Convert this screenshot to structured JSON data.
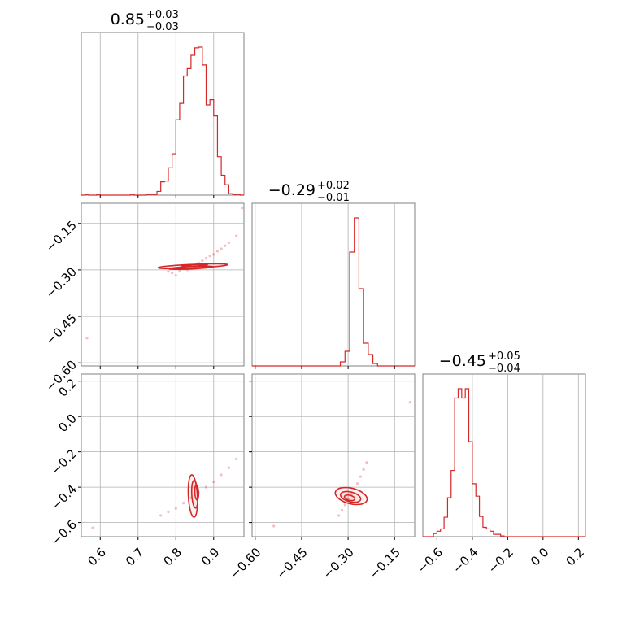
{
  "chart_data": {
    "type": "corner",
    "parameters": [
      {
        "title": {
          "median": "0.85",
          "plus": "+0.03",
          "minus": "−0.03"
        },
        "range": [
          0.55,
          0.98
        ],
        "ticks": [
          0.6,
          0.7,
          0.8,
          0.9
        ],
        "tick_labels": [
          "0.6",
          "0.7",
          "0.8",
          "0.9"
        ]
      },
      {
        "title": {
          "median": "−0.29",
          "plus": "+0.02",
          "minus": "−0.01"
        },
        "range": [
          -0.61,
          -0.085
        ],
        "ticks": [
          -0.6,
          -0.45,
          -0.3,
          -0.15
        ],
        "tick_labels": [
          "−0.60",
          "−0.45",
          "−0.30",
          "−0.15"
        ]
      },
      {
        "title": {
          "median": "−0.45",
          "plus": "+0.05",
          "minus": "−0.04"
        },
        "range": [
          -0.68,
          0.24
        ],
        "ticks": [
          -0.6,
          -0.4,
          -0.2,
          0.0,
          0.2
        ],
        "tick_labels": [
          "−0.6",
          "−0.4",
          "−0.2",
          "0.0",
          "0.2"
        ]
      }
    ],
    "histograms": [
      {
        "edges": [
          0.55,
          0.56,
          0.57,
          0.58,
          0.59,
          0.6,
          0.61,
          0.62,
          0.63,
          0.64,
          0.65,
          0.66,
          0.67,
          0.68,
          0.69,
          0.7,
          0.71,
          0.72,
          0.73,
          0.74,
          0.75,
          0.76,
          0.77,
          0.78,
          0.79,
          0.8,
          0.81,
          0.82,
          0.83,
          0.84,
          0.85,
          0.86,
          0.87,
          0.88,
          0.89,
          0.9,
          0.91,
          0.92,
          0.93,
          0.94,
          0.95,
          0.96,
          0.97,
          0.98
        ],
        "counts": [
          0,
          1,
          0,
          0,
          1,
          0,
          0,
          0,
          0,
          0,
          0,
          0,
          0,
          1,
          0,
          0,
          0,
          1,
          1,
          1,
          5,
          18,
          19,
          37,
          56,
          102,
          124,
          161,
          171,
          189,
          199,
          200,
          176,
          122,
          129,
          107,
          52,
          27,
          14,
          2,
          1,
          1,
          0
        ]
      },
      {
        "edges": [
          -0.61,
          -0.595,
          -0.58,
          -0.565,
          -0.55,
          -0.535,
          -0.52,
          -0.505,
          -0.49,
          -0.475,
          -0.46,
          -0.445,
          -0.43,
          -0.415,
          -0.4,
          -0.385,
          -0.37,
          -0.355,
          -0.34,
          -0.325,
          -0.31,
          -0.295,
          -0.28,
          -0.265,
          -0.25,
          -0.235,
          -0.22,
          -0.205,
          -0.19,
          -0.175,
          -0.16,
          -0.145,
          -0.13,
          -0.115,
          -0.1,
          -0.085
        ],
        "counts": [
          0,
          0,
          0,
          0,
          0,
          0,
          0,
          0,
          0,
          0,
          0,
          0,
          0,
          0,
          0,
          0,
          0,
          0,
          0,
          5,
          18,
          140,
          182,
          95,
          28,
          14,
          3,
          0,
          0,
          0,
          0,
          0,
          0,
          0,
          0
        ]
      },
      {
        "edges": [
          -0.68,
          -0.66,
          -0.64,
          -0.62,
          -0.6,
          -0.58,
          -0.56,
          -0.54,
          -0.52,
          -0.5,
          -0.48,
          -0.46,
          -0.44,
          -0.42,
          -0.4,
          -0.38,
          -0.36,
          -0.34,
          -0.32,
          -0.3,
          -0.28,
          -0.26,
          -0.24,
          -0.22,
          -0.2,
          -0.18,
          -0.16,
          -0.14,
          -0.12,
          -0.1,
          -0.08,
          -0.06,
          -0.04,
          -0.02,
          0.0,
          0.02,
          0.04,
          0.06,
          0.08,
          0.1,
          0.12,
          0.14,
          0.16,
          0.18,
          0.2,
          0.22,
          0.24
        ],
        "counts": [
          0,
          0,
          0,
          4,
          7,
          10,
          25,
          50,
          85,
          178,
          190,
          178,
          190,
          122,
          68,
          52,
          26,
          12,
          10,
          7,
          3,
          3,
          1,
          0,
          0,
          0,
          0,
          0,
          0,
          0,
          0,
          0,
          0,
          0,
          0,
          0,
          0,
          0,
          0,
          0,
          0,
          0,
          0,
          0,
          0,
          0
        ]
      }
    ],
    "pairs": [
      {
        "x_param": 0,
        "y_param": 1,
        "scatter": [
          [
            0.565,
            -0.52
          ],
          [
            0.78,
            -0.305
          ],
          [
            0.79,
            -0.31
          ],
          [
            0.8,
            -0.318
          ],
          [
            0.81,
            -0.302
          ],
          [
            0.82,
            -0.297
          ],
          [
            0.83,
            -0.3
          ],
          [
            0.84,
            -0.285
          ],
          [
            0.85,
            -0.29
          ],
          [
            0.86,
            -0.278
          ],
          [
            0.87,
            -0.27
          ],
          [
            0.88,
            -0.262
          ],
          [
            0.89,
            -0.255
          ],
          [
            0.9,
            -0.25
          ],
          [
            0.91,
            -0.24
          ],
          [
            0.92,
            -0.232
          ],
          [
            0.93,
            -0.222
          ],
          [
            0.94,
            -0.212
          ],
          [
            0.96,
            -0.19
          ],
          [
            0.975,
            -0.1
          ]
        ],
        "contours": [
          {
            "cx": 0.845,
            "cy": -0.288,
            "rx": 0.095,
            "ry": 0.006,
            "angle": 0.26
          },
          {
            "cx": 0.84,
            "cy": -0.293,
            "rx": 0.06,
            "ry": 0.004,
            "angle": 0.28
          },
          {
            "cx": 0.85,
            "cy": -0.285,
            "rx": 0.035,
            "ry": 0.0025,
            "angle": 0.3
          }
        ]
      },
      {
        "x_param": 0,
        "y_param": 2,
        "scatter": [
          [
            0.58,
            -0.63
          ],
          [
            0.76,
            -0.56
          ],
          [
            0.78,
            -0.54
          ],
          [
            0.8,
            -0.52
          ],
          [
            0.82,
            -0.49
          ],
          [
            0.84,
            -0.46
          ],
          [
            0.86,
            -0.43
          ],
          [
            0.88,
            -0.4
          ],
          [
            0.9,
            -0.37
          ],
          [
            0.92,
            -0.33
          ],
          [
            0.94,
            -0.29
          ],
          [
            0.96,
            -0.24
          ]
        ],
        "contours": [
          {
            "cx": 0.845,
            "cy": -0.45,
            "rx": 0.1,
            "ry": 0.012,
            "angle": 1.6
          },
          {
            "cx": 0.85,
            "cy": -0.44,
            "rx": 0.065,
            "ry": 0.008,
            "angle": 1.6
          },
          {
            "cx": 0.855,
            "cy": -0.43,
            "rx": 0.035,
            "ry": 0.005,
            "angle": 1.6
          }
        ]
      },
      {
        "x_param": 1,
        "y_param": 2,
        "scatter": [
          [
            -0.54,
            -0.62
          ],
          [
            -0.33,
            -0.56
          ],
          [
            -0.32,
            -0.53
          ],
          [
            -0.31,
            -0.5
          ],
          [
            -0.3,
            -0.47
          ],
          [
            -0.29,
            -0.44
          ],
          [
            -0.28,
            -0.41
          ],
          [
            -0.27,
            -0.38
          ],
          [
            -0.26,
            -0.34
          ],
          [
            -0.25,
            -0.3
          ],
          [
            -0.24,
            -0.26
          ],
          [
            -0.1,
            0.08
          ]
        ],
        "contours": [
          {
            "cx": -0.29,
            "cy": -0.45,
            "rx": 0.055,
            "ry": 0.04,
            "angle": 2.6
          },
          {
            "cx": -0.292,
            "cy": -0.455,
            "rx": 0.035,
            "ry": 0.025,
            "angle": 2.6
          },
          {
            "cx": -0.295,
            "cy": -0.46,
            "rx": 0.018,
            "ry": 0.013,
            "angle": 2.6
          }
        ]
      }
    ],
    "color": "#d62728",
    "frame_color": "#808080",
    "grid": true,
    "grid_color": "#b0b0b0"
  }
}
